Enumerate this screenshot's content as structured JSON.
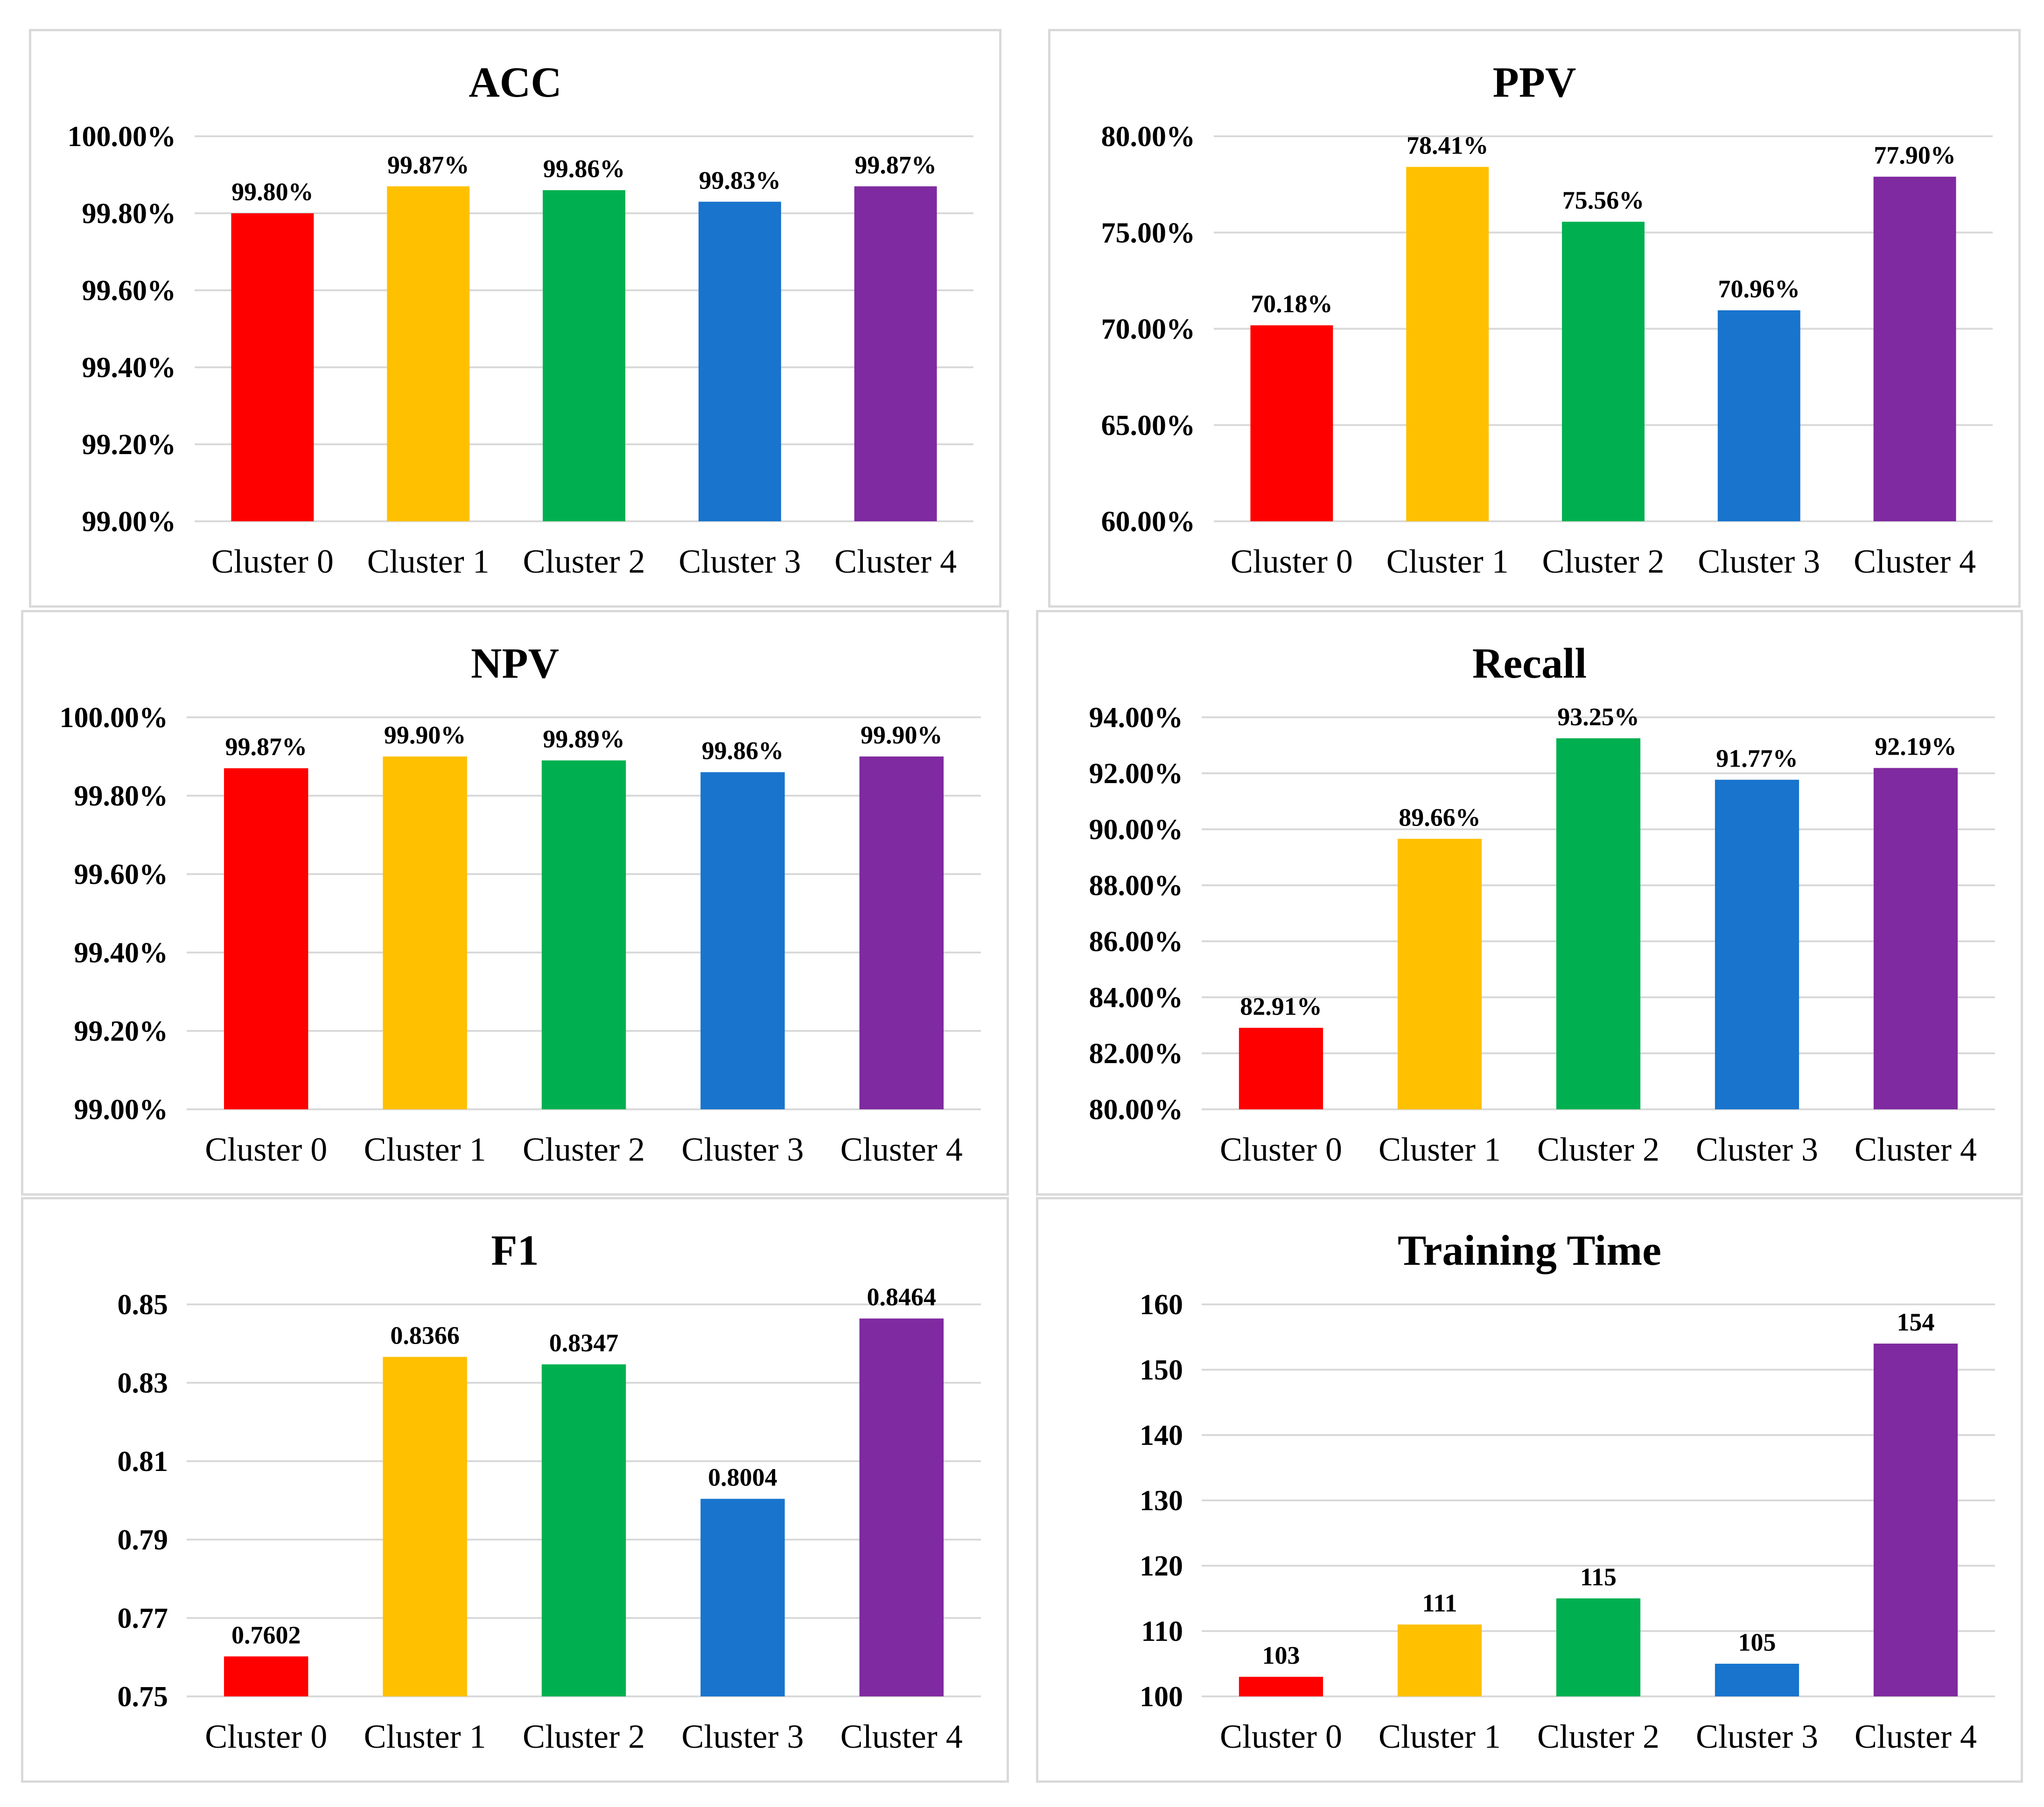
{
  "colors": {
    "cluster0": "#FF0000",
    "cluster1": "#FFC000",
    "cluster2": "#00B050",
    "cluster3": "#1874CD",
    "cluster4": "#7F2AA0",
    "gridline": "#D9D9D9"
  },
  "chart_data": [
    {
      "type": "bar",
      "title": "ACC",
      "categories": [
        "Cluster 0",
        "Cluster 1",
        "Cluster 2",
        "Cluster 3",
        "Cluster 4"
      ],
      "values": [
        99.8,
        99.87,
        99.86,
        99.83,
        99.87
      ],
      "data_labels": [
        "99.80%",
        "99.87%",
        "99.86%",
        "99.83%",
        "99.87%"
      ],
      "ylim": [
        99.0,
        100.0
      ],
      "yticks": [
        99.0,
        99.2,
        99.4,
        99.6,
        99.8,
        100.0
      ],
      "ytick_labels": [
        "99.00%",
        "99.20%",
        "99.40%",
        "99.60%",
        "99.80%",
        "100.00%"
      ],
      "xlabel": "",
      "ylabel": ""
    },
    {
      "type": "bar",
      "title": "PPV",
      "categories": [
        "Cluster 0",
        "Cluster 1",
        "Cluster 2",
        "Cluster 3",
        "Cluster 4"
      ],
      "values": [
        70.18,
        78.41,
        75.56,
        70.96,
        77.9
      ],
      "data_labels": [
        "70.18%",
        "78.41%",
        "75.56%",
        "70.96%",
        "77.90%"
      ],
      "ylim": [
        60.0,
        80.0
      ],
      "yticks": [
        60,
        65,
        70,
        75,
        80
      ],
      "ytick_labels": [
        "60.00%",
        "65.00%",
        "70.00%",
        "75.00%",
        "80.00%"
      ],
      "xlabel": "",
      "ylabel": ""
    },
    {
      "type": "bar",
      "title": "NPV",
      "categories": [
        "Cluster 0",
        "Cluster 1",
        "Cluster 2",
        "Cluster 3",
        "Cluster 4"
      ],
      "values": [
        99.87,
        99.9,
        99.89,
        99.86,
        99.9
      ],
      "data_labels": [
        "99.87%",
        "99.90%",
        "99.89%",
        "99.86%",
        "99.90%"
      ],
      "ylim": [
        99.0,
        100.0
      ],
      "yticks": [
        99.0,
        99.2,
        99.4,
        99.6,
        99.8,
        100.0
      ],
      "ytick_labels": [
        "99.00%",
        "99.20%",
        "99.40%",
        "99.60%",
        "99.80%",
        "100.00%"
      ],
      "xlabel": "",
      "ylabel": ""
    },
    {
      "type": "bar",
      "title": "Recall",
      "categories": [
        "Cluster 0",
        "Cluster 1",
        "Cluster 2",
        "Cluster 3",
        "Cluster 4"
      ],
      "values": [
        82.91,
        89.66,
        93.25,
        91.77,
        92.19
      ],
      "data_labels": [
        "82.91%",
        "89.66%",
        "93.25%",
        "91.77%",
        "92.19%"
      ],
      "ylim": [
        80.0,
        94.0
      ],
      "yticks": [
        80,
        82,
        84,
        86,
        88,
        90,
        92,
        94
      ],
      "ytick_labels": [
        "80.00%",
        "82.00%",
        "84.00%",
        "86.00%",
        "88.00%",
        "90.00%",
        "92.00%",
        "94.00%"
      ],
      "xlabel": "",
      "ylabel": ""
    },
    {
      "type": "bar",
      "title": "F1",
      "categories": [
        "Cluster 0",
        "Cluster 1",
        "Cluster 2",
        "Cluster 3",
        "Cluster 4"
      ],
      "values": [
        0.7602,
        0.8366,
        0.8347,
        0.8004,
        0.8464
      ],
      "data_labels": [
        "0.7602",
        "0.8366",
        "0.8347",
        "0.8004",
        "0.8464"
      ],
      "ylim": [
        0.75,
        0.85
      ],
      "yticks": [
        0.75,
        0.77,
        0.79,
        0.81,
        0.83,
        0.85
      ],
      "ytick_labels": [
        "0.75",
        "0.77",
        "0.79",
        "0.81",
        "0.83",
        "0.85"
      ],
      "xlabel": "",
      "ylabel": ""
    },
    {
      "type": "bar",
      "title": "Training Time",
      "categories": [
        "Cluster 0",
        "Cluster 1",
        "Cluster 2",
        "Cluster 3",
        "Cluster 4"
      ],
      "values": [
        103,
        111,
        115,
        105,
        154
      ],
      "data_labels": [
        "103",
        "111",
        "115",
        "105",
        "154"
      ],
      "ylim": [
        100,
        160
      ],
      "yticks": [
        100,
        110,
        120,
        130,
        140,
        150,
        160
      ],
      "ytick_labels": [
        "100",
        "110",
        "120",
        "130",
        "140",
        "150",
        "160"
      ],
      "xlabel": "",
      "ylabel": ""
    }
  ]
}
